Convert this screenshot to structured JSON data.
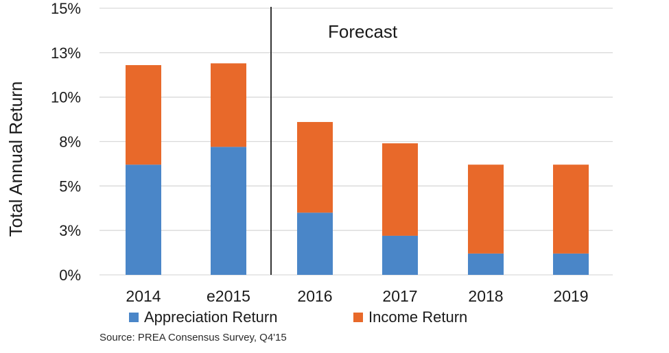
{
  "chart_data": {
    "type": "bar",
    "stacked": true,
    "title": "",
    "xlabel": "",
    "ylabel": "Total Annual Return",
    "ylim": [
      0,
      15
    ],
    "yticks": [
      {
        "value": 0,
        "label": "0%"
      },
      {
        "value": 2.5,
        "label": "3%"
      },
      {
        "value": 5,
        "label": "5%"
      },
      {
        "value": 7.5,
        "label": "8%"
      },
      {
        "value": 10,
        "label": "10%"
      },
      {
        "value": 12.5,
        "label": "13%"
      },
      {
        "value": 15,
        "label": "15%"
      }
    ],
    "grid": true,
    "categories": [
      "2014",
      "e2015",
      "2016",
      "2017",
      "2018",
      "2019"
    ],
    "series": [
      {
        "name": "Appreciation Return",
        "color": "#4a86c8",
        "values": [
          6.2,
          7.2,
          3.5,
          2.2,
          1.2,
          1.2
        ]
      },
      {
        "name": "Income Return",
        "color": "#e8692a",
        "values": [
          5.6,
          4.7,
          5.1,
          5.2,
          5.0,
          5.0
        ]
      }
    ],
    "annotations": [
      {
        "text": "Forecast",
        "divider_after_category": "e2015"
      }
    ],
    "legend": {
      "position": "bottom"
    },
    "source": "Source: PREA Consensus Survey, Q4'15"
  }
}
